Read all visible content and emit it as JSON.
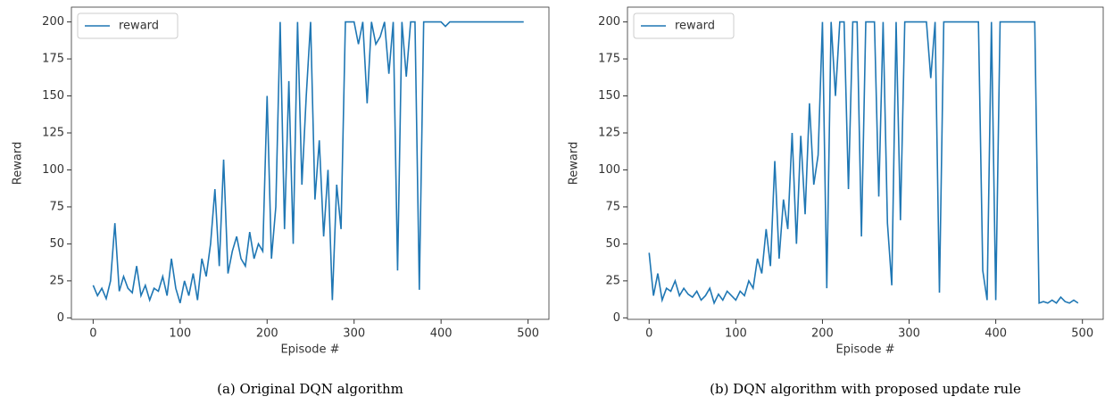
{
  "chart_data": [
    {
      "type": "line",
      "caption": "(a) Original DQN algorithm",
      "xlabel": "Episode #",
      "ylabel": "Reward",
      "legend": "upper left",
      "xlim": [
        -25,
        524
      ],
      "ylim": [
        -1,
        210
      ],
      "xticks": [
        0,
        100,
        200,
        300,
        400,
        500
      ],
      "yticks": [
        0,
        25,
        50,
        75,
        100,
        125,
        150,
        175,
        200
      ],
      "x": [
        0,
        5,
        10,
        15,
        20,
        25,
        30,
        35,
        40,
        45,
        50,
        55,
        60,
        65,
        70,
        75,
        80,
        85,
        90,
        95,
        100,
        105,
        110,
        115,
        120,
        125,
        130,
        135,
        140,
        145,
        150,
        155,
        160,
        165,
        170,
        175,
        180,
        185,
        190,
        195,
        200,
        205,
        210,
        215,
        220,
        225,
        230,
        235,
        240,
        245,
        250,
        255,
        260,
        265,
        270,
        275,
        280,
        285,
        290,
        295,
        300,
        305,
        310,
        315,
        320,
        325,
        330,
        335,
        340,
        345,
        350,
        355,
        360,
        365,
        370,
        375,
        380,
        385,
        390,
        395,
        400,
        405,
        410,
        415,
        420,
        425,
        430,
        435,
        440,
        445,
        450,
        455,
        460,
        465,
        470,
        475,
        480,
        485,
        490,
        495
      ],
      "series": [
        {
          "name": "reward",
          "color": "#1f77b4",
          "values": [
            22,
            15,
            20,
            13,
            25,
            64,
            18,
            28,
            20,
            17,
            35,
            15,
            22,
            12,
            20,
            18,
            28,
            15,
            40,
            20,
            10,
            25,
            15,
            30,
            12,
            40,
            28,
            50,
            87,
            35,
            107,
            30,
            45,
            55,
            40,
            35,
            58,
            40,
            50,
            45,
            150,
            40,
            75,
            200,
            60,
            160,
            50,
            200,
            90,
            150,
            200,
            80,
            120,
            55,
            100,
            12,
            90,
            60,
            200,
            200,
            200,
            185,
            200,
            145,
            200,
            185,
            190,
            200,
            165,
            200,
            32,
            200,
            163,
            200,
            200,
            19,
            200,
            200,
            200,
            200,
            200,
            197,
            200,
            200,
            200,
            200,
            200,
            200,
            200,
            200,
            200,
            200,
            200,
            200,
            200,
            200,
            200,
            200,
            200,
            200
          ]
        }
      ]
    },
    {
      "type": "line",
      "caption": "(b) DQN algorithm with proposed update rule",
      "xlabel": "Episode #",
      "ylabel": "Reward",
      "legend": "upper left",
      "xlim": [
        -25,
        524
      ],
      "ylim": [
        -1,
        210
      ],
      "xticks": [
        0,
        100,
        200,
        300,
        400,
        500
      ],
      "yticks": [
        0,
        25,
        50,
        75,
        100,
        125,
        150,
        175,
        200
      ],
      "x": [
        0,
        5,
        10,
        15,
        20,
        25,
        30,
        35,
        40,
        45,
        50,
        55,
        60,
        65,
        70,
        75,
        80,
        85,
        90,
        95,
        100,
        105,
        110,
        115,
        120,
        125,
        130,
        135,
        140,
        145,
        150,
        155,
        160,
        165,
        170,
        175,
        180,
        185,
        190,
        195,
        200,
        205,
        210,
        215,
        220,
        225,
        230,
        235,
        240,
        245,
        250,
        255,
        260,
        265,
        270,
        275,
        280,
        285,
        290,
        295,
        300,
        305,
        310,
        315,
        320,
        325,
        330,
        335,
        340,
        345,
        350,
        355,
        360,
        365,
        370,
        375,
        380,
        385,
        390,
        395,
        400,
        405,
        410,
        415,
        420,
        425,
        430,
        435,
        440,
        445,
        450,
        455,
        460,
        465,
        470,
        475,
        480,
        485,
        490,
        495
      ],
      "series": [
        {
          "name": "reward",
          "color": "#1f77b4",
          "values": [
            44,
            15,
            30,
            12,
            20,
            18,
            25,
            15,
            20,
            16,
            14,
            18,
            12,
            15,
            20,
            10,
            16,
            12,
            18,
            15,
            12,
            18,
            15,
            25,
            20,
            40,
            30,
            60,
            35,
            106,
            40,
            80,
            60,
            125,
            50,
            123,
            70,
            145,
            90,
            110,
            200,
            20,
            200,
            150,
            200,
            200,
            87,
            200,
            200,
            55,
            200,
            200,
            200,
            82,
            200,
            64,
            22,
            200,
            66,
            200,
            200,
            200,
            200,
            200,
            200,
            162,
            200,
            17,
            200,
            200,
            200,
            200,
            200,
            200,
            200,
            200,
            200,
            32,
            12,
            200,
            12,
            200,
            200,
            200,
            200,
            200,
            200,
            200,
            200,
            200,
            10,
            11,
            10,
            12,
            10,
            14,
            11,
            10,
            12,
            10
          ]
        }
      ]
    }
  ]
}
